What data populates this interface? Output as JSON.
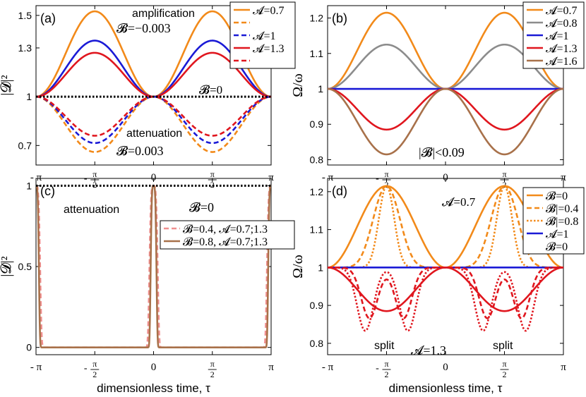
{
  "chart_data": [
    {
      "id": "a",
      "type": "line",
      "panel_label": "(a)",
      "ylabel": "|𝓓|²",
      "xlim": [
        -3.14159,
        3.14159
      ],
      "ylim": [
        0.58,
        1.56
      ],
      "xticks": [
        "- π",
        "- π/2",
        "0",
        "π/2",
        "π"
      ],
      "xtick_values": [
        -3.14159,
        -1.5708,
        0,
        1.5708,
        3.14159
      ],
      "yticks": [
        "0.7",
        "1",
        "1.3",
        "1.5"
      ],
      "ytick_values": [
        0.7,
        1.0,
        1.3,
        1.5
      ],
      "annotations": {
        "amp_title": "amplification",
        "amp_value": "𝓑=−0.003",
        "att_title": "attenuation",
        "att_value": "𝓑=0.003",
        "zero": "𝓑=0"
      },
      "legend": [
        {
          "label": "𝓐=0.7",
          "color": "#f28a1a",
          "dash": false
        },
        {
          "label": "",
          "color": "#f28a1a",
          "dash": true
        },
        {
          "label": "𝓐=1",
          "color": "#1a1ad6",
          "dash": true
        },
        {
          "label": "𝓐=1.3",
          "color": "#e0161e",
          "dash": false
        },
        {
          "label": "",
          "color": "#e0161e",
          "dash": true
        }
      ],
      "series": [
        {
          "color": "#f28a1a",
          "dash": false,
          "kind": "bump",
          "amplitude": 0.525
        },
        {
          "color": "#1a1ad6",
          "dash": false,
          "kind": "bump",
          "amplitude": 0.345
        },
        {
          "color": "#e0161e",
          "dash": false,
          "kind": "bump",
          "amplitude": 0.27
        },
        {
          "color": "#f28a1a",
          "dash": true,
          "kind": "bump",
          "amplitude": -0.34
        },
        {
          "color": "#1a1ad6",
          "dash": true,
          "kind": "bump",
          "amplitude": -0.285
        },
        {
          "color": "#e0161e",
          "dash": true,
          "kind": "bump",
          "amplitude": -0.24
        },
        {
          "color": "#000000",
          "dash": "dot",
          "kind": "const",
          "value": 1.0
        }
      ]
    },
    {
      "id": "b",
      "type": "line",
      "panel_label": "(b)",
      "ylabel": "Ω/ω",
      "xlim": [
        -3.14159,
        3.14159
      ],
      "ylim": [
        0.785,
        1.235
      ],
      "xticks": [
        "- π",
        "- π/2",
        "0",
        "π/2",
        "π"
      ],
      "xtick_values": [
        -3.14159,
        -1.5708,
        0,
        1.5708,
        3.14159
      ],
      "yticks": [
        "0.8",
        "0.9",
        "1",
        "1.1",
        "1.2"
      ],
      "ytick_values": [
        0.8,
        0.9,
        1.0,
        1.1,
        1.2
      ],
      "annotations": {
        "condition": "|𝓑|<0.09"
      },
      "legend": [
        {
          "label": "𝓐=0.7",
          "color": "#f28a1a",
          "dash": false
        },
        {
          "label": "𝓐=0.8",
          "color": "#8c8c8c",
          "dash": false
        },
        {
          "label": "𝓐=1",
          "color": "#1a1ad6",
          "dash": false
        },
        {
          "label": "𝓐=1.3",
          "color": "#e0161e",
          "dash": false
        },
        {
          "label": "𝓐=1.6",
          "color": "#a8714a",
          "dash": false
        }
      ],
      "series": [
        {
          "color": "#f28a1a",
          "dash": false,
          "kind": "bump",
          "amplitude": 0.215
        },
        {
          "color": "#8c8c8c",
          "dash": false,
          "kind": "bump",
          "amplitude": 0.125
        },
        {
          "color": "#1a1ad6",
          "dash": false,
          "kind": "const",
          "value": 1.0
        },
        {
          "color": "#e0161e",
          "dash": false,
          "kind": "bump",
          "amplitude": -0.115
        },
        {
          "color": "#a8714a",
          "dash": false,
          "kind": "bump",
          "amplitude": -0.185
        }
      ]
    },
    {
      "id": "c",
      "type": "line",
      "panel_label": "(c)",
      "ylabel": "|𝓓|²",
      "xlim": [
        -3.14159,
        3.14159
      ],
      "ylim": [
        -0.045,
        1.045
      ],
      "xlabel": "dimensionless time, τ",
      "xticks": [
        "- π",
        "- π/2",
        "0",
        "π/2",
        "π"
      ],
      "xtick_values": [
        -3.14159,
        -1.5708,
        0,
        1.5708,
        3.14159
      ],
      "yticks": [
        "0",
        "0.5",
        "1"
      ],
      "ytick_values": [
        0,
        0.5,
        1.0
      ],
      "annotations": {
        "att_title": "attenuation",
        "zero": "𝓑=0"
      },
      "legend": [
        {
          "label": "𝓑=0.4, 𝓐=0.7;1.3",
          "color": "#f08f8f",
          "dash": true
        },
        {
          "label": "𝓑=0.8, 𝓐=0.7;1.3",
          "color": "#a8714a",
          "dash": false
        }
      ],
      "series": [
        {
          "color": "#f08f8f",
          "dash": true,
          "kind": "spike",
          "width": 0.12
        },
        {
          "color": "#a8714a",
          "dash": false,
          "kind": "spike",
          "width": 0.085
        },
        {
          "color": "#000000",
          "dash": "dot",
          "kind": "const",
          "value": 1.0
        }
      ]
    },
    {
      "id": "d",
      "type": "line",
      "panel_label": "(d)",
      "ylabel": "Ω/ω",
      "xlim": [
        -3.14159,
        3.14159
      ],
      "ylim": [
        0.77,
        1.235
      ],
      "xlabel": "dimensionless time, τ",
      "xticks": [
        "- π",
        "- π/2",
        "0",
        "π/2",
        "π"
      ],
      "xtick_values": [
        -3.14159,
        -1.5708,
        0,
        1.5708,
        3.14159
      ],
      "yticks": [
        "0.8",
        "0.9",
        "1",
        "1.1",
        "1.2"
      ],
      "ytick_values": [
        0.8,
        0.9,
        1.0,
        1.1,
        1.2
      ],
      "annotations": {
        "title": "𝓐=0.7",
        "a13": "𝓐=1.3",
        "split1": "split",
        "split2": "split"
      },
      "legend": [
        {
          "label": "𝓑=0",
          "color": "#f28a1a",
          "dash": false
        },
        {
          "label": "𝓑|=0.4",
          "color": "#f28a1a",
          "dash": true
        },
        {
          "label": "𝓑|=0.8",
          "color": "#f28a1a",
          "dash": "dot"
        },
        {
          "label": "𝓐=1",
          "color": "#1a1ad6",
          "dash": false
        },
        {
          "label": "𝓑=0",
          "color": "",
          "dash": false
        }
      ],
      "series": [
        {
          "color": "#f28a1a",
          "dash": false,
          "kind": "bump",
          "amplitude": 0.215
        },
        {
          "color": "#f28a1a",
          "dash": true,
          "kind": "peakpow",
          "amplitude": 0.215,
          "power": 4
        },
        {
          "color": "#f28a1a",
          "dash": "dot",
          "kind": "peakpow",
          "amplitude": 0.215,
          "power": 12
        },
        {
          "color": "#1a1ad6",
          "dash": false,
          "kind": "const",
          "value": 1.0
        },
        {
          "color": "#e0161e",
          "dash": false,
          "kind": "bump",
          "amplitude": -0.115
        },
        {
          "color": "#e0161e",
          "dash": true,
          "kind": "split",
          "depth": 0.15,
          "offset": 0.48
        },
        {
          "color": "#e0161e",
          "dash": "dot",
          "kind": "split",
          "depth": 0.2,
          "offset": 0.6
        }
      ]
    }
  ]
}
